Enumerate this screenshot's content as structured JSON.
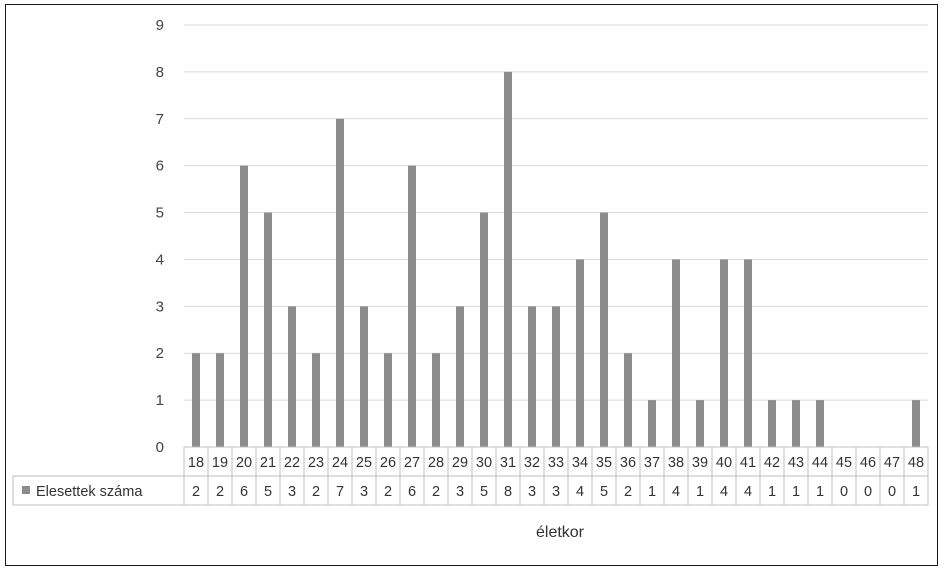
{
  "chart_data": {
    "type": "bar",
    "title": "",
    "xlabel": "életkor",
    "ylabel": "",
    "ylim": [
      0,
      9
    ],
    "yticks": [
      0,
      1,
      2,
      3,
      4,
      5,
      6,
      7,
      8,
      9
    ],
    "grid": true,
    "legend_position": "data-table-left",
    "data_table": true,
    "bar_color": "#8c8c8c",
    "categories": [
      "18",
      "19",
      "20",
      "21",
      "22",
      "23",
      "24",
      "25",
      "26",
      "27",
      "28",
      "29",
      "30",
      "31",
      "32",
      "33",
      "34",
      "35",
      "36",
      "37",
      "38",
      "39",
      "40",
      "41",
      "42",
      "43",
      "44",
      "45",
      "46",
      "47",
      "48"
    ],
    "series": [
      {
        "name": "Elesettek száma",
        "values": [
          2,
          2,
          6,
          5,
          3,
          2,
          7,
          3,
          2,
          6,
          2,
          3,
          5,
          8,
          3,
          3,
          4,
          5,
          2,
          1,
          4,
          1,
          4,
          4,
          1,
          1,
          1,
          0,
          0,
          0,
          1
        ]
      }
    ]
  }
}
